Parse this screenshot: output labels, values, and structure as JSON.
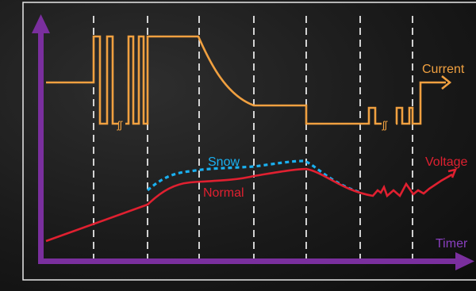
{
  "labels": {
    "current": "Current",
    "voltage": "Voltage",
    "timer": "Timer",
    "snow": "Snow",
    "normal": "Normal",
    "break_mark": "≈"
  },
  "colors": {
    "background": "#1a1a1a",
    "frame": "#ffffff",
    "axis": "#8a2be2",
    "axis_fill": "#7a2f9e",
    "current": "#f0a040",
    "voltage": "#e02030",
    "snow": "#1ab0f0",
    "dashed_guides": "#ffffff"
  }
}
